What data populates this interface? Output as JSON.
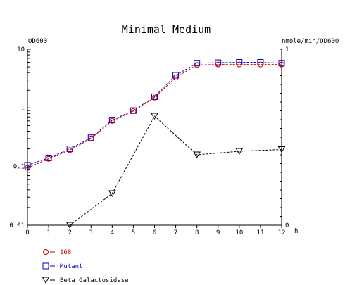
{
  "chart_data": {
    "type": "line",
    "title": "Minimal Medium",
    "xlabel": "h",
    "ylabel_left": "OD600",
    "ylabel_right": "nmole/min/OD600",
    "x": [
      0,
      1,
      2,
      3,
      4,
      5,
      6,
      7,
      8,
      9,
      10,
      11,
      12
    ],
    "xlim": [
      0,
      12
    ],
    "ylim_left": [
      0.01,
      10
    ],
    "yscale_left": "log",
    "yticks_left": [
      "10",
      "1",
      "0.1",
      "0.01"
    ],
    "ylim_right": [
      0,
      1
    ],
    "yticks_right": [
      "1",
      "0"
    ],
    "grid": false,
    "legend_position": "bottom-left",
    "series": [
      {
        "name": "168",
        "axis": "left",
        "color": "#cc0000",
        "marker": "circle",
        "x": [
          0,
          1,
          2,
          3,
          4,
          5,
          6,
          7,
          8,
          9,
          10,
          11,
          12
        ],
        "values": [
          0.095,
          0.135,
          0.19,
          0.3,
          0.6,
          0.88,
          1.5,
          3.3,
          5.4,
          5.5,
          5.5,
          5.5,
          5.5
        ]
      },
      {
        "name": "Mutant",
        "axis": "left",
        "color": "#0000cc",
        "marker": "square",
        "x": [
          0,
          1,
          2,
          3,
          4,
          5,
          6,
          7,
          8,
          9,
          10,
          11,
          12
        ],
        "values": [
          0.105,
          0.14,
          0.2,
          0.31,
          0.62,
          0.9,
          1.55,
          3.6,
          5.8,
          5.9,
          6.0,
          6.0,
          5.8
        ]
      },
      {
        "name": "Beta Galactosidase",
        "axis": "right",
        "color": "#000000",
        "marker": "triangle-down",
        "x": [
          2,
          4,
          6,
          8,
          10,
          12
        ],
        "values": [
          0.0,
          0.18,
          0.62,
          0.4,
          0.42,
          0.43
        ]
      }
    ]
  }
}
